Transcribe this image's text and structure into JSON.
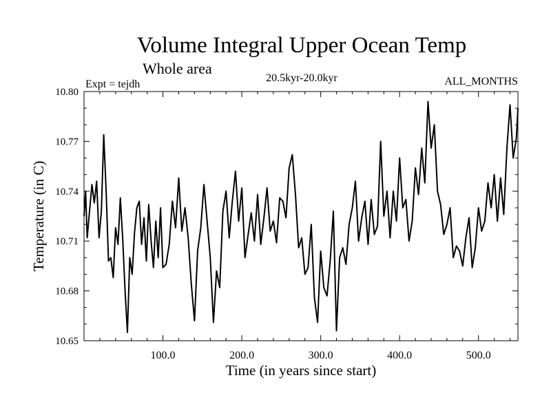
{
  "chart_data": {
    "type": "line",
    "title": "Volume Integral Upper Ocean Temp",
    "subtitle": "Whole area",
    "experiment_label": "Expt = tejdh",
    "period_label": "20.5kyr-20.0kyr",
    "months_label": "ALL_MONTHS",
    "xlabel": "Time (in years since start)",
    "ylabel": "Temperature (in C)",
    "xlim": [
      0,
      550
    ],
    "ylim": [
      10.65,
      10.8
    ],
    "x_ticks": [
      {
        "value": 100,
        "label": "100.0"
      },
      {
        "value": 200,
        "label": "200.0"
      },
      {
        "value": 300,
        "label": "300.0"
      },
      {
        "value": 400,
        "label": "400.0"
      },
      {
        "value": 500,
        "label": "500.0"
      }
    ],
    "y_ticks": [
      {
        "value": 10.65,
        "label": "10.65"
      },
      {
        "value": 10.68,
        "label": "10.68"
      },
      {
        "value": 10.71,
        "label": "10.71"
      },
      {
        "value": 10.74,
        "label": "10.74"
      },
      {
        "value": 10.77,
        "label": "10.77"
      },
      {
        "value": 10.8,
        "label": "10.80"
      }
    ],
    "grid": false,
    "series": [
      {
        "name": "Volume Integral Upper Ocean Temp",
        "color": "#000000",
        "x": [
          0,
          2,
          4,
          7,
          10,
          13,
          16,
          19,
          22,
          25,
          28,
          31,
          34,
          37,
          40,
          43,
          46,
          49,
          52,
          55,
          58,
          61,
          64,
          67,
          70,
          73,
          76,
          79,
          82,
          85,
          88,
          91,
          94,
          97,
          100,
          104,
          108,
          112,
          116,
          120,
          124,
          128,
          132,
          136,
          140,
          144,
          148,
          152,
          156,
          160,
          164,
          168,
          172,
          176,
          180,
          184,
          188,
          192,
          196,
          200,
          204,
          208,
          212,
          216,
          220,
          224,
          228,
          232,
          236,
          240,
          244,
          248,
          252,
          256,
          260,
          264,
          268,
          272,
          276,
          280,
          284,
          288,
          292,
          296,
          300,
          304,
          308,
          312,
          316,
          320,
          324,
          328,
          332,
          336,
          340,
          344,
          348,
          352,
          356,
          360,
          364,
          368,
          372,
          376,
          380,
          384,
          388,
          392,
          396,
          400,
          404,
          408,
          412,
          416,
          420,
          424,
          428,
          432,
          436,
          440,
          444,
          448,
          452,
          456,
          460,
          464,
          468,
          472,
          476,
          480,
          484,
          488,
          492,
          496,
          500,
          504,
          508,
          512,
          516,
          520,
          524,
          528,
          532,
          536,
          540,
          544,
          548,
          550
        ],
        "y": [
          10.725,
          10.74,
          10.712,
          10.728,
          10.744,
          10.733,
          10.746,
          10.712,
          10.728,
          10.774,
          10.74,
          10.698,
          10.7,
          10.688,
          10.718,
          10.708,
          10.736,
          10.712,
          10.68,
          10.655,
          10.7,
          10.69,
          10.715,
          10.73,
          10.734,
          10.708,
          10.724,
          10.698,
          10.732,
          10.71,
          10.694,
          10.722,
          10.7,
          10.73,
          10.694,
          10.696,
          10.708,
          10.734,
          10.718,
          10.748,
          10.716,
          10.73,
          10.712,
          10.684,
          10.662,
          10.704,
          10.718,
          10.744,
          10.722,
          10.7,
          10.661,
          10.692,
          10.682,
          10.728,
          10.74,
          10.712,
          10.734,
          10.752,
          10.722,
          10.742,
          10.7,
          10.714,
          10.727,
          10.71,
          10.738,
          10.708,
          10.724,
          10.742,
          10.716,
          10.722,
          10.709,
          10.736,
          10.734,
          10.724,
          10.754,
          10.762,
          10.738,
          10.706,
          10.712,
          10.69,
          10.694,
          10.72,
          10.676,
          10.661,
          10.704,
          10.682,
          10.677,
          10.698,
          10.728,
          10.656,
          10.7,
          10.706,
          10.696,
          10.72,
          10.73,
          10.746,
          10.71,
          10.724,
          10.734,
          10.708,
          10.735,
          10.714,
          10.719,
          10.77,
          10.725,
          10.74,
          10.712,
          10.74,
          10.722,
          10.76,
          10.73,
          10.735,
          10.71,
          10.722,
          10.754,
          10.738,
          10.766,
          10.745,
          10.794,
          10.766,
          10.78,
          10.74,
          10.732,
          10.714,
          10.72,
          10.73,
          10.7,
          10.707,
          10.704,
          10.695,
          10.712,
          10.724,
          10.694,
          10.706,
          10.73,
          10.716,
          10.722,
          10.745,
          10.73,
          10.75,
          10.722,
          10.748,
          10.726,
          10.766,
          10.792,
          10.76,
          10.772,
          10.79
        ]
      }
    ]
  }
}
